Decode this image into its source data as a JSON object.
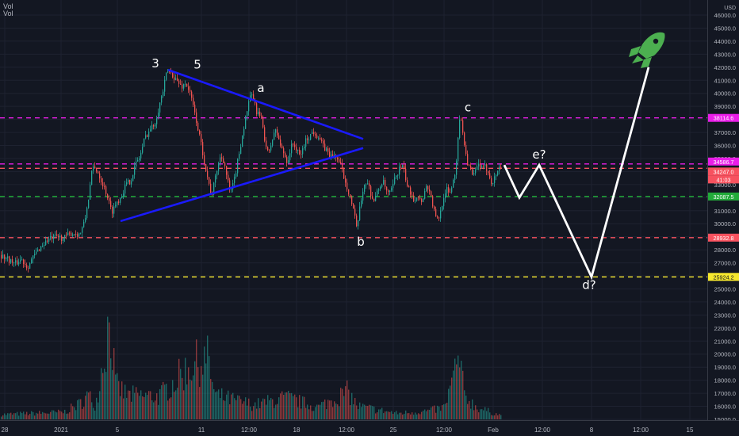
{
  "header": {
    "line1": "Vol",
    "line2": "Vol"
  },
  "colors": {
    "background": "#131722",
    "grid": "#1e2230",
    "axis_text": "#b2b5be",
    "candle_up": "#26a69a",
    "candle_down": "#ef5350",
    "trendline": "#1a1aff",
    "projection": "#ffffff",
    "rocket": "#4caf50"
  },
  "chart_data": {
    "type": "candlestick",
    "title": "",
    "currency_label": "USD",
    "y_axis": {
      "ticks": [
        "15000.0",
        "16000.0",
        "17000.0",
        "18000.0",
        "19000.0",
        "20000.0",
        "21000.0",
        "22000.0",
        "23000.0",
        "24000.0",
        "25000.0",
        "26000.0",
        "27000.0",
        "28000.0",
        "29000.0",
        "30000.0",
        "31000.0",
        "32000.0",
        "33000.0",
        "34000.0",
        "35000.0",
        "36000.0",
        "37000.0",
        "38000.0",
        "39000.0",
        "40000.0",
        "41000.0",
        "42000.0",
        "43000.0",
        "44000.0",
        "45000.0",
        "46000.0"
      ],
      "ylim": [
        14400,
        46700
      ]
    },
    "x_axis": {
      "ticks": [
        "28",
        "2021",
        "5",
        "11",
        "12:00",
        "18",
        "12:00",
        "25",
        "12:00",
        "Feb",
        "12:00",
        "8",
        "12:00",
        "15"
      ]
    },
    "price_path": [
      [
        0,
        27600
      ],
      [
        10,
        27300
      ],
      [
        18,
        26900
      ],
      [
        26,
        27300
      ],
      [
        34,
        26700
      ],
      [
        42,
        27500
      ],
      [
        50,
        28200
      ],
      [
        60,
        28800
      ],
      [
        70,
        29000
      ],
      [
        80,
        28900
      ],
      [
        90,
        29300
      ],
      [
        100,
        29200
      ],
      [
        106,
        30100
      ],
      [
        111,
        32000
      ],
      [
        116,
        34300
      ],
      [
        122,
        34100
      ],
      [
        128,
        33200
      ],
      [
        134,
        32300
      ],
      [
        140,
        30900
      ],
      [
        146,
        31600
      ],
      [
        152,
        32100
      ],
      [
        158,
        33000
      ],
      [
        164,
        33300
      ],
      [
        170,
        34500
      ],
      [
        176,
        35200
      ],
      [
        182,
        36600
      ],
      [
        188,
        37200
      ],
      [
        194,
        37600
      ],
      [
        200,
        39000
      ],
      [
        205,
        40200
      ],
      [
        210,
        41700
      ],
      [
        216,
        41500
      ],
      [
        222,
        41000
      ],
      [
        228,
        40500
      ],
      [
        234,
        40800
      ],
      [
        240,
        39800
      ],
      [
        246,
        38200
      ],
      [
        252,
        36400
      ],
      [
        258,
        34500
      ],
      [
        262,
        33300
      ],
      [
        266,
        32100
      ],
      [
        270,
        33200
      ],
      [
        274,
        34500
      ],
      [
        278,
        35200
      ],
      [
        282,
        34800
      ],
      [
        286,
        33400
      ],
      [
        290,
        32300
      ],
      [
        294,
        33100
      ],
      [
        298,
        34400
      ],
      [
        302,
        35800
      ],
      [
        306,
        37100
      ],
      [
        310,
        38400
      ],
      [
        314,
        39500
      ],
      [
        318,
        39900
      ],
      [
        322,
        38700
      ],
      [
        326,
        38400
      ],
      [
        330,
        37800
      ],
      [
        334,
        36200
      ],
      [
        338,
        35200
      ],
      [
        342,
        36300
      ],
      [
        346,
        37200
      ],
      [
        350,
        36700
      ],
      [
        354,
        35800
      ],
      [
        358,
        35300
      ],
      [
        362,
        34700
      ],
      [
        366,
        35800
      ],
      [
        370,
        36200
      ],
      [
        374,
        35500
      ],
      [
        378,
        35200
      ],
      [
        382,
        35900
      ],
      [
        386,
        36500
      ],
      [
        390,
        36700
      ],
      [
        394,
        37100
      ],
      [
        398,
        36900
      ],
      [
        402,
        36600
      ],
      [
        406,
        36000
      ],
      [
        410,
        35700
      ],
      [
        414,
        35400
      ],
      [
        418,
        35100
      ],
      [
        422,
        35300
      ],
      [
        426,
        34800
      ],
      [
        430,
        34300
      ],
      [
        434,
        33400
      ],
      [
        438,
        32700
      ],
      [
        442,
        31800
      ],
      [
        446,
        30800
      ],
      [
        449,
        29600
      ],
      [
        452,
        30700
      ],
      [
        455,
        31800
      ],
      [
        458,
        33000
      ],
      [
        462,
        33200
      ],
      [
        466,
        32600
      ],
      [
        470,
        31700
      ],
      [
        474,
        32200
      ],
      [
        478,
        32800
      ],
      [
        482,
        33300
      ],
      [
        486,
        32600
      ],
      [
        490,
        32200
      ],
      [
        494,
        32700
      ],
      [
        498,
        33600
      ],
      [
        502,
        34100
      ],
      [
        506,
        34500
      ],
      [
        510,
        33800
      ],
      [
        514,
        32600
      ],
      [
        518,
        32400
      ],
      [
        522,
        31800
      ],
      [
        526,
        32300
      ],
      [
        530,
        31600
      ],
      [
        534,
        32300
      ],
      [
        538,
        33000
      ],
      [
        542,
        32300
      ],
      [
        546,
        31200
      ],
      [
        550,
        30200
      ],
      [
        554,
        30600
      ],
      [
        558,
        31900
      ],
      [
        562,
        32700
      ],
      [
        566,
        32200
      ],
      [
        570,
        33100
      ],
      [
        574,
        34100
      ],
      [
        578,
        37600
      ],
      [
        581,
        38100
      ],
      [
        584,
        36600
      ],
      [
        588,
        34900
      ],
      [
        592,
        34200
      ],
      [
        596,
        33500
      ],
      [
        600,
        34200
      ],
      [
        604,
        34600
      ],
      [
        608,
        34100
      ],
      [
        612,
        34400
      ],
      [
        616,
        33800
      ],
      [
        620,
        33100
      ],
      [
        624,
        33600
      ],
      [
        628,
        34300
      ],
      [
        632,
        34300
      ]
    ],
    "volume_profile": [
      [
        0,
        15400
      ],
      [
        40,
        15500
      ],
      [
        80,
        15600
      ],
      [
        100,
        16300
      ],
      [
        110,
        17000
      ],
      [
        120,
        16200
      ],
      [
        138,
        23500
      ],
      [
        145,
        17800
      ],
      [
        160,
        17000
      ],
      [
        200,
        16900
      ],
      [
        240,
        19500
      ],
      [
        262,
        20000
      ],
      [
        270,
        17000
      ],
      [
        300,
        16500
      ],
      [
        320,
        16200
      ],
      [
        360,
        16800
      ],
      [
        400,
        16000
      ],
      [
        438,
        17300
      ],
      [
        450,
        16100
      ],
      [
        500,
        15500
      ],
      [
        540,
        15700
      ],
      [
        560,
        16000
      ],
      [
        578,
        20000
      ],
      [
        585,
        17000
      ],
      [
        600,
        16000
      ],
      [
        632,
        15300
      ]
    ],
    "trendlines": [
      {
        "points": [
          [
            212,
            41800
          ],
          [
            458,
            36500
          ]
        ]
      },
      {
        "points": [
          [
            152,
            30200
          ],
          [
            458,
            35800
          ]
        ]
      }
    ],
    "horizontal_levels": [
      {
        "price": 38114.6,
        "label": "38114.6",
        "color": "#e91ee8"
      },
      {
        "price": 34586.7,
        "label": "34586.7",
        "color": "#e91ee8"
      },
      {
        "price": 34247.0,
        "label": "34247.0",
        "color": "#f7525f"
      },
      {
        "price": 32087.5,
        "label": "32087.5",
        "color": "#22ab3a"
      },
      {
        "price": 28932.8,
        "label": "28932.8",
        "color": "#f7525f"
      },
      {
        "price": 25924.2,
        "label": "25924.2",
        "color": "#f5e72e"
      }
    ],
    "countdown_badge": {
      "label": "41:03"
    },
    "projection_path": [
      [
        636,
        34500
      ],
      [
        655,
        32000
      ],
      [
        680,
        34500
      ],
      [
        746,
        25924
      ],
      [
        818,
        42000
      ]
    ],
    "wave_labels": [
      {
        "text": "3",
        "x": 196,
        "price": 42000
      },
      {
        "text": "5",
        "x": 249,
        "price": 41900
      },
      {
        "text": "a",
        "x": 329,
        "price": 40100
      },
      {
        "text": "b",
        "x": 455,
        "price": 28300
      },
      {
        "text": "c",
        "x": 590,
        "price": 38600
      },
      {
        "text": "e?",
        "x": 680,
        "price": 35000
      },
      {
        "text": "d?",
        "x": 743,
        "price": 25000
      }
    ]
  }
}
